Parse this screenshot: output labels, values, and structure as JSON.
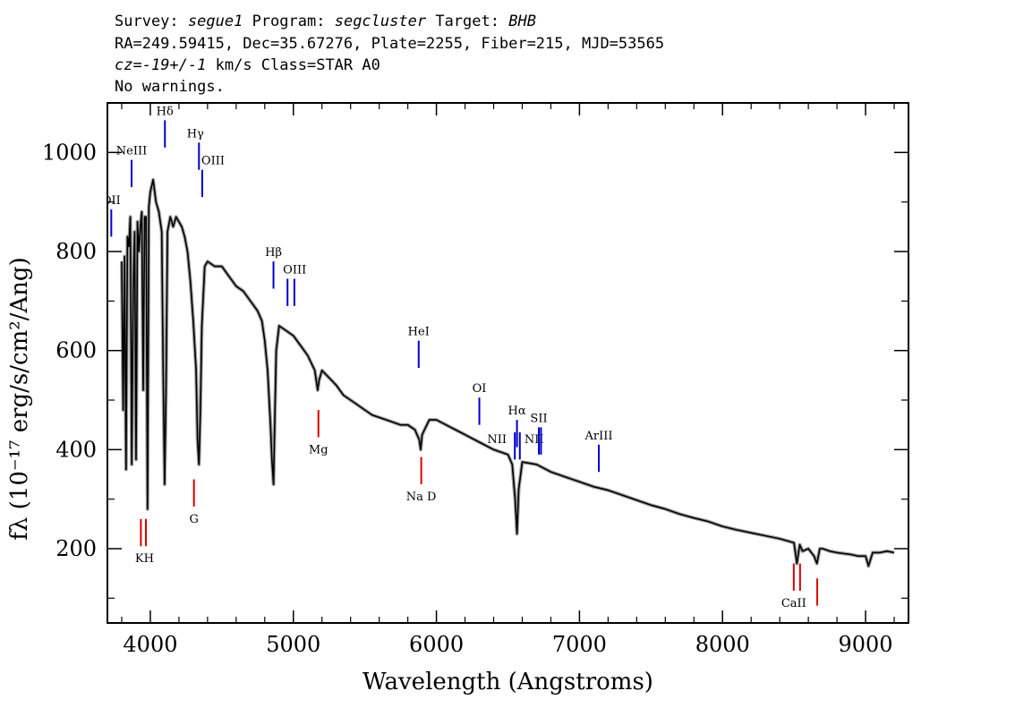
{
  "header": {
    "survey_label": "Survey:",
    "survey": "segue1",
    "program_label": "Program:",
    "program": "segcluster",
    "target_label": "Target:",
    "target": "BHB",
    "line2": "RA=249.59415, Dec=35.67276, Plate=2255, Fiber=215, MJD=53565",
    "cz_label": "cz=",
    "cz": "-19+/-1",
    "cz_unit": "km/s Class=STAR A0",
    "line4": "No warnings."
  },
  "colors": {
    "emission_line": "#0000cc",
    "absorption_line": "#dd0000",
    "spectrum": "#000000",
    "error_band": "#a0a0a0"
  },
  "chart_data": {
    "type": "line",
    "xlabel": "Wavelength (Angstroms)",
    "ylabel": "fλ (10⁻¹⁷ erg/s/cm²/Ang)",
    "xlim": [
      3700,
      9300
    ],
    "ylim": [
      50,
      1100
    ],
    "x_ticks": [
      4000,
      5000,
      6000,
      7000,
      8000,
      9000
    ],
    "y_ticks": [
      200,
      400,
      600,
      800,
      1000
    ],
    "grid": false,
    "series": [
      {
        "x": [
          3800,
          3810,
          3820,
          3830,
          3840,
          3850,
          3860,
          3870,
          3880,
          3890,
          3900,
          3910,
          3920,
          3930,
          3940,
          3950,
          3960,
          3970,
          3980,
          3990,
          4000,
          4020,
          4040,
          4060,
          4080,
          4090,
          4100,
          4110,
          4120,
          4140,
          4160,
          4180,
          4200,
          4220,
          4240,
          4260,
          4280,
          4300,
          4320,
          4330,
          4340,
          4350,
          4360,
          4380,
          4400,
          4450,
          4500,
          4550,
          4600,
          4650,
          4700,
          4750,
          4780,
          4800,
          4820,
          4840,
          4850,
          4861,
          4870,
          4880,
          4900,
          4950,
          5000,
          5050,
          5100,
          5150,
          5170,
          5180,
          5200,
          5250,
          5300,
          5350,
          5400,
          5450,
          5500,
          5550,
          5600,
          5650,
          5700,
          5750,
          5800,
          5850,
          5880,
          5890,
          5900,
          5950,
          6000,
          6100,
          6200,
          6300,
          6400,
          6500,
          6530,
          6550,
          6563,
          6575,
          6600,
          6700,
          6800,
          6900,
          7000,
          7100,
          7200,
          7300,
          7400,
          7500,
          7600,
          7700,
          7800,
          7900,
          8000,
          8100,
          8200,
          8300,
          8400,
          8500,
          8520,
          8540,
          8560,
          8600,
          8640,
          8660,
          8680,
          8700,
          8750,
          8800,
          8850,
          8900,
          8950,
          9000,
          9020,
          9050,
          9100,
          9150,
          9200
        ],
        "y": [
          780,
          480,
          790,
          360,
          830,
          810,
          870,
          370,
          720,
          840,
          380,
          860,
          800,
          850,
          880,
          520,
          870,
          870,
          280,
          890,
          920,
          945,
          900,
          880,
          840,
          560,
          330,
          520,
          840,
          870,
          850,
          870,
          860,
          850,
          830,
          800,
          740,
          660,
          560,
          420,
          370,
          480,
          650,
          770,
          780,
          770,
          770,
          750,
          730,
          720,
          700,
          680,
          660,
          620,
          560,
          450,
          380,
          330,
          460,
          600,
          650,
          640,
          630,
          610,
          590,
          560,
          520,
          540,
          560,
          545,
          530,
          510,
          500,
          490,
          480,
          470,
          465,
          460,
          455,
          450,
          450,
          440,
          420,
          400,
          430,
          460,
          460,
          445,
          430,
          415,
          400,
          390,
          370,
          300,
          230,
          320,
          375,
          370,
          355,
          345,
          335,
          325,
          318,
          308,
          298,
          288,
          280,
          270,
          262,
          255,
          245,
          238,
          232,
          226,
          220,
          212,
          170,
          208,
          195,
          200,
          185,
          170,
          200,
          200,
          195,
          192,
          190,
          188,
          185,
          185,
          165,
          192,
          192,
          195,
          192
        ]
      }
    ],
    "lines": [
      {
        "label": "OII",
        "x": 3727,
        "kind": "emission",
        "y0": 830,
        "y1": 885
      },
      {
        "label": "NeIII",
        "x": 3869,
        "kind": "emission",
        "y0": 930,
        "y1": 985
      },
      {
        "label": "Hδ",
        "x": 4102,
        "kind": "emission",
        "y0": 1010,
        "y1": 1065
      },
      {
        "label": "Hγ",
        "x": 4340,
        "kind": "emission",
        "y0": 965,
        "y1": 1020
      },
      {
        "label": "OIII",
        "x": 4363,
        "kind": "emission",
        "y0": 910,
        "y1": 965
      },
      {
        "label": "Hβ",
        "x": 4861,
        "kind": "emission",
        "y0": 725,
        "y1": 780
      },
      {
        "label": "OIII",
        "x": 4959,
        "kind": "emission",
        "y0": 690,
        "y1": 745
      },
      {
        "label": "",
        "x": 5007,
        "kind": "emission",
        "y0": 690,
        "y1": 745
      },
      {
        "label": "HeI",
        "x": 5876,
        "kind": "emission",
        "y0": 565,
        "y1": 620
      },
      {
        "label": "OI",
        "x": 6300,
        "kind": "emission",
        "y0": 450,
        "y1": 505
      },
      {
        "label": "NII",
        "x": 6548,
        "kind": "emission",
        "y0": 380,
        "y1": 435
      },
      {
        "label": "Hα",
        "x": 6563,
        "kind": "emission",
        "y0": 405,
        "y1": 460
      },
      {
        "label": "NII",
        "x": 6583,
        "kind": "emission",
        "y0": 380,
        "y1": 435
      },
      {
        "label": "SII",
        "x": 6716,
        "kind": "emission",
        "y0": 390,
        "y1": 445
      },
      {
        "label": "",
        "x": 6731,
        "kind": "emission",
        "y0": 390,
        "y1": 445
      },
      {
        "label": "ArIII",
        "x": 7135,
        "kind": "emission",
        "y0": 355,
        "y1": 410
      },
      {
        "label": "KH",
        "x": 3934,
        "kind": "absorption",
        "y0": 205,
        "y1": 260
      },
      {
        "label": "",
        "x": 3969,
        "kind": "absorption",
        "y0": 205,
        "y1": 260
      },
      {
        "label": "G",
        "x": 4305,
        "kind": "absorption",
        "y0": 285,
        "y1": 340
      },
      {
        "label": "Mg",
        "x": 5175,
        "kind": "absorption",
        "y0": 425,
        "y1": 480
      },
      {
        "label": "Na D",
        "x": 5894,
        "kind": "absorption",
        "y0": 330,
        "y1": 385
      },
      {
        "label": "CaII",
        "x": 8498,
        "kind": "absorption",
        "y0": 115,
        "y1": 170
      },
      {
        "label": "",
        "x": 8542,
        "kind": "absorption",
        "y0": 115,
        "y1": 170
      },
      {
        "label": "",
        "x": 8662,
        "kind": "absorption",
        "y0": 85,
        "y1": 140
      }
    ]
  }
}
